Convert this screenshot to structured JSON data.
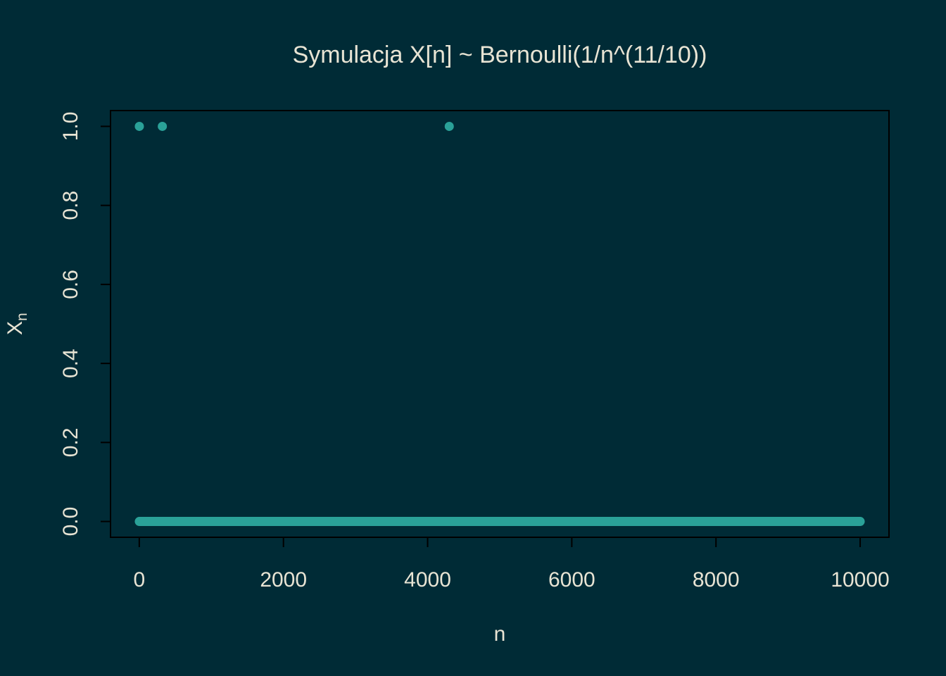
{
  "chart_data": {
    "type": "scatter",
    "title": "Symulacja X[n] ~ Bernoulli(1/n^(11/10))",
    "xlabel": "n",
    "ylabel": "X",
    "ylabel_subscript": "n",
    "xlim": [
      1,
      10000
    ],
    "ylim": [
      0,
      1
    ],
    "x_ticks": [
      0,
      2000,
      4000,
      6000,
      8000,
      10000
    ],
    "x_tick_labels": [
      "0",
      "2000",
      "4000",
      "6000",
      "8000",
      "10000"
    ],
    "y_ticks": [
      0,
      0.2,
      0.4,
      0.6,
      0.8,
      1.0
    ],
    "y_tick_labels": [
      "0.0",
      "0.2",
      "0.4",
      "0.6",
      "0.8",
      "1.0"
    ],
    "grid": false,
    "series": [
      {
        "points_one": [
          1,
          320,
          4300
        ],
        "zero_range": [
          1,
          10000
        ]
      }
    ],
    "colors": {
      "background": "#002b36",
      "point": "#2aa198",
      "text": "#e8e4d4",
      "axis": "#000000"
    }
  }
}
